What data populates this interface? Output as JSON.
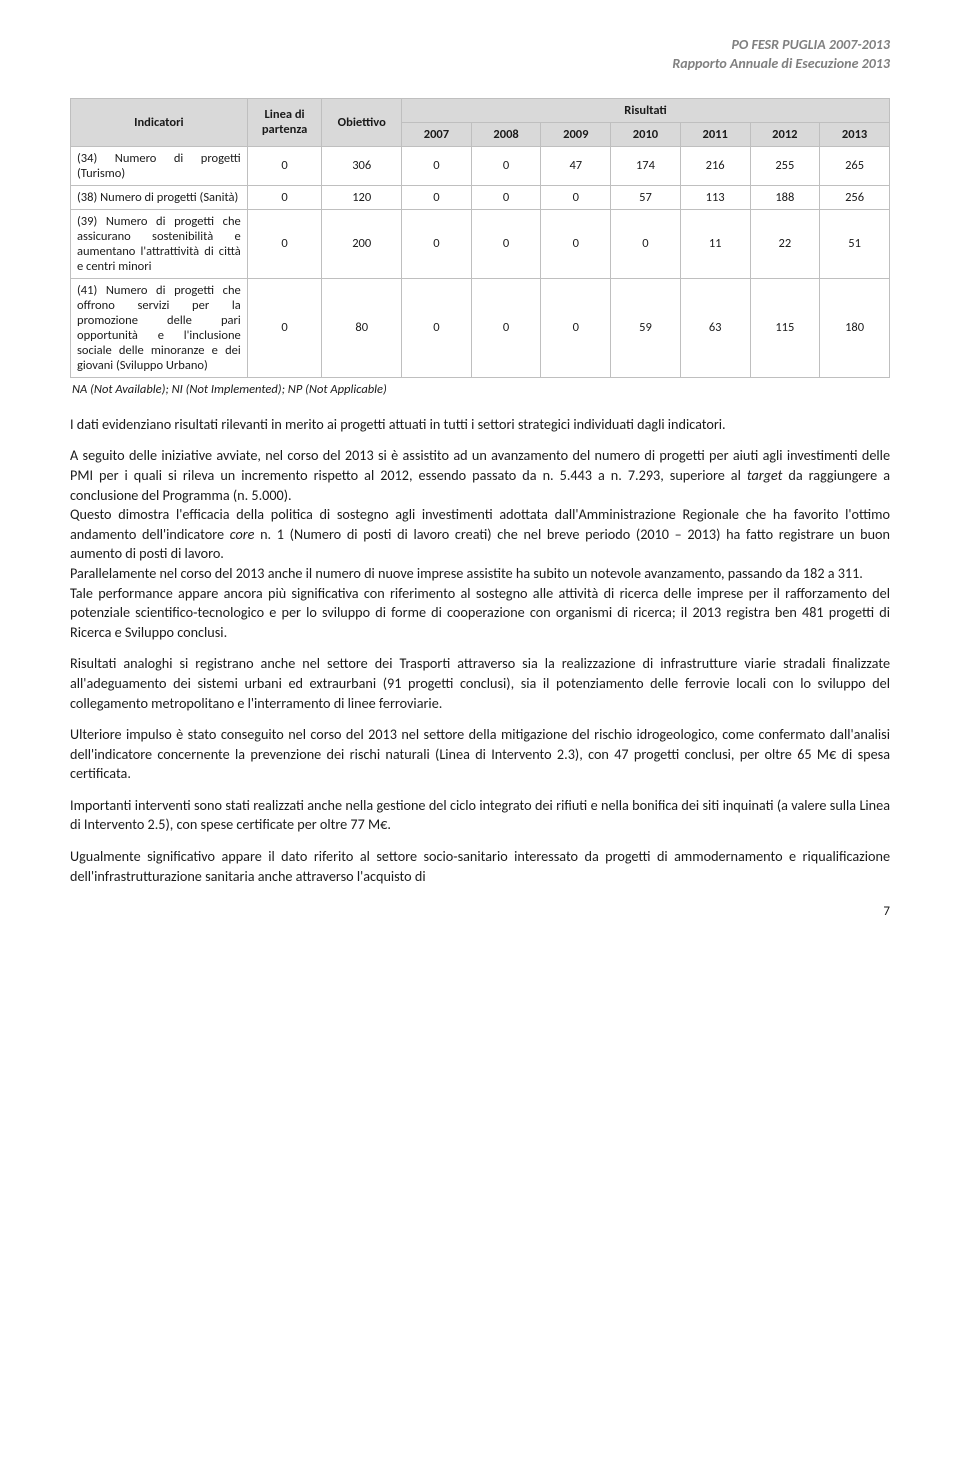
{
  "header": {
    "line1": "PO FESR PUGLIA 2007-2013",
    "line2": "Rapporto Annuale di Esecuzione 2013"
  },
  "table": {
    "head": {
      "indicatori": "Indicatori",
      "linea": "Linea di partenza",
      "obiettivo": "Obiettivo",
      "risultati": "Risultati",
      "years": [
        "2007",
        "2008",
        "2009",
        "2010",
        "2011",
        "2012",
        "2013"
      ]
    },
    "rows": [
      {
        "label": "(34) Numero di progetti (Turismo)",
        "start": "0",
        "obj": "306",
        "vals": [
          "0",
          "0",
          "47",
          "174",
          "216",
          "255",
          "265"
        ]
      },
      {
        "label": "(38) Numero di progetti (Sanità)",
        "start": "0",
        "obj": "120",
        "vals": [
          "0",
          "0",
          "0",
          "57",
          "113",
          "188",
          "256"
        ]
      },
      {
        "label": "(39) Numero di progetti che assicurano sostenibilità e aumentano l'attrattività di città e centri minori",
        "start": "0",
        "obj": "200",
        "vals": [
          "0",
          "0",
          "0",
          "0",
          "11",
          "22",
          "51"
        ]
      },
      {
        "label": "(41) Numero di progetti che offrono servizi per la promozione delle pari opportunità e l'inclusione sociale delle minoranze e dei giovani (Sviluppo Urbano)",
        "start": "0",
        "obj": "80",
        "vals": [
          "0",
          "0",
          "0",
          "59",
          "63",
          "115",
          "180"
        ]
      }
    ],
    "note": "NA (Not Available);  NI (Not Implemented); NP (Not Applicable)"
  },
  "paragraphs": {
    "p1": "I dati evidenziano risultati rilevanti in merito ai progetti attuati in tutti i settori strategici individuati dagli indicatori.",
    "p2a": "A seguito delle iniziative avviate, nel corso del 2013 si è assistito ad un avanzamento del numero di progetti per aiuti agli investimenti delle PMI per i quali si rileva un incremento rispetto al 2012, essendo passato da n. 5.443 a n. 7.293, superiore al ",
    "p2b": "target",
    "p2c": " da raggiungere a conclusione del Programma (n. 5.000).",
    "p3a": "Questo dimostra l'efficacia della politica di sostegno agli investimenti adottata dall'Amministrazione Regionale che ha favorito l'ottimo andamento dell'indicatore ",
    "p3b": "core",
    "p3c": " n. 1 (Numero di posti di lavoro creati) che nel breve periodo (2010 – 2013) ha fatto registrare un buon aumento di posti di lavoro.",
    "p4": "Parallelamente nel corso del 2013 anche il numero di nuove imprese assistite ha subito un notevole avanzamento, passando da 182 a 311.",
    "p5": "Tale performance appare ancora più significativa con riferimento al sostegno alle attività di ricerca delle imprese per il rafforzamento del potenziale scientifico-tecnologico e per lo sviluppo di forme di cooperazione con organismi di ricerca; il 2013 registra ben 481 progetti di Ricerca e Sviluppo conclusi.",
    "p6": "Risultati analoghi si registrano anche nel settore dei Trasporti attraverso sia la realizzazione di infrastrutture viarie stradali finalizzate all'adeguamento dei sistemi urbani ed extraurbani (91 progetti conclusi), sia il potenziamento delle ferrovie locali con lo sviluppo del collegamento metropolitano e l'interramento di linee ferroviarie.",
    "p7": "Ulteriore impulso è stato conseguito nel corso del 2013 nel settore della mitigazione del rischio idrogeologico, come confermato dall'analisi dell'indicatore concernente la prevenzione dei rischi naturali (Linea di Intervento 2.3), con 47 progetti conclusi, per oltre 65 M€ di spesa certificata.",
    "p8": "Importanti interventi sono stati realizzati anche nella gestione del ciclo integrato dei rifiuti e nella bonifica dei siti inquinati (a valere sulla Linea di Intervento 2.5), con spese certificate per oltre 77 M€.",
    "p9": "Ugualmente significativo appare il dato riferito al settore socio-sanitario interessato da progetti di ammodernamento e riqualificazione dell'infrastrutturazione sanitaria anche attraverso l'acquisto di"
  },
  "page_number": "7"
}
